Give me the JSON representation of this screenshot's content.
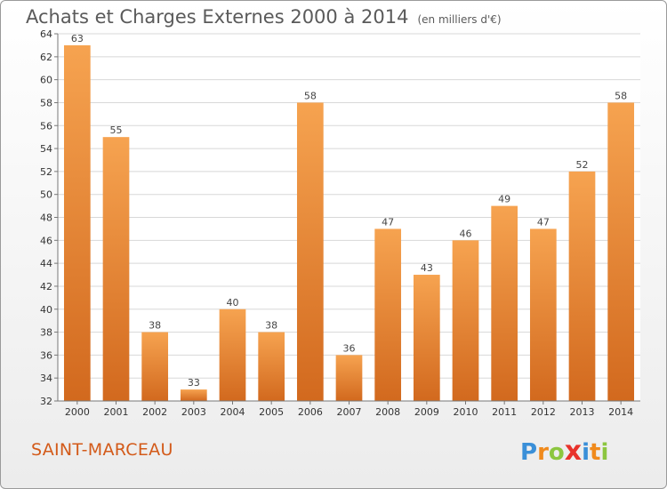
{
  "title": "Achats et Charges Externes 2000 à 2014",
  "subtitle": "(en milliers d'€)",
  "commune": "SAINT-MARCEAU",
  "logo": {
    "letters": [
      "P",
      "r",
      "o",
      "x",
      "i",
      "t",
      "i"
    ],
    "colors": [
      "#3a8fd8",
      "#f08a1c",
      "#8cc63f",
      "#e8322b",
      "#3a8fd8",
      "#f08a1c",
      "#8cc63f"
    ]
  },
  "chart_data": {
    "type": "bar",
    "categories": [
      "2000",
      "2001",
      "2002",
      "2003",
      "2004",
      "2005",
      "2006",
      "2007",
      "2008",
      "2009",
      "2010",
      "2011",
      "2012",
      "2013",
      "2014"
    ],
    "values": [
      63,
      55,
      38,
      33,
      40,
      38,
      58,
      36,
      47,
      43,
      46,
      49,
      47,
      52,
      58
    ],
    "ylim": [
      32,
      64
    ],
    "yticks": [
      32,
      34,
      36,
      38,
      40,
      42,
      44,
      46,
      48,
      50,
      52,
      54,
      56,
      58,
      60,
      62,
      64
    ],
    "grid": true,
    "bar_color": "#ef8a2d"
  }
}
